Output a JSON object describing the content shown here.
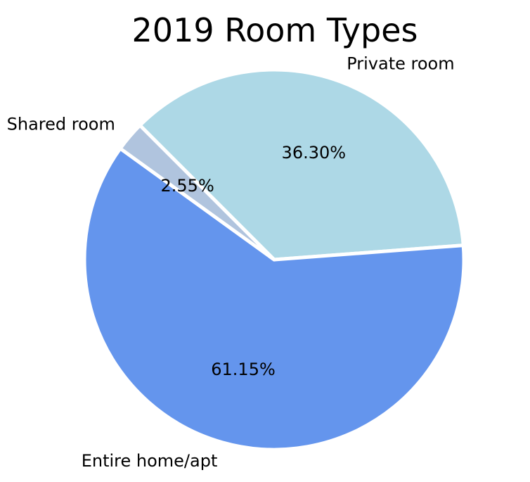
{
  "chart_data": {
    "type": "pie",
    "title": "2019 Room Types",
    "start_angle_deg": 225,
    "direction": "clockwise",
    "slices": [
      {
        "label": "Private room",
        "value": 36.3,
        "pct_label": "36.30%",
        "color": "#add8e6"
      },
      {
        "label": "Entire home/apt",
        "value": 61.15,
        "pct_label": "61.15%",
        "color": "#6495ed"
      },
      {
        "label": "Shared room",
        "value": 2.55,
        "pct_label": "2.55%",
        "color": "#b0c4de"
      }
    ],
    "edge_color": "#ffffff"
  }
}
